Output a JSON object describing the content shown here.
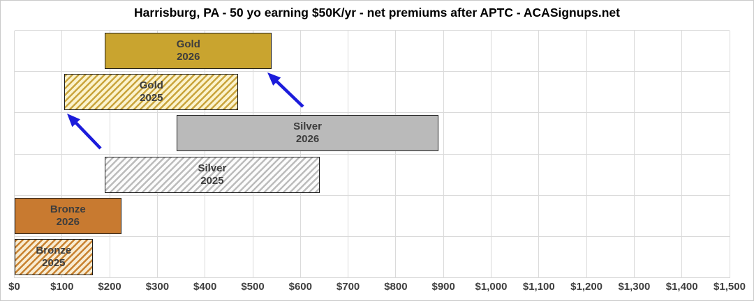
{
  "chart_data": {
    "type": "bar",
    "subtype": "horizontal-range",
    "title": "Harrisburg, PA - 50 yo earning $50K/yr - net premiums after APTC - ACASignups.net",
    "xlabel": "",
    "ylabel": "",
    "grid": true,
    "legend": "none",
    "x_axis": {
      "min": 0,
      "max": 1500,
      "tick_step": 100,
      "tick_labels": [
        "$0",
        "$100",
        "$200",
        "$300",
        "$400",
        "$500",
        "$600",
        "$700",
        "$800",
        "$900",
        "$1,000",
        "$1,100",
        "$1,200",
        "$1,300",
        "$1,400",
        "$1,500"
      ]
    },
    "categories": [
      "Gold 2026",
      "Gold 2025",
      "Silver 2026",
      "Silver 2025",
      "Bronze 2026",
      "Bronze 2025"
    ],
    "rows": [
      {
        "name": "Gold 2026",
        "line1": "Gold",
        "line2": "2026",
        "min": 190,
        "max": 540,
        "style": "solid",
        "fill": "#c9a42f",
        "stripe": "#c9a42f",
        "border": "#1c1c1c"
      },
      {
        "name": "Gold 2025",
        "line1": "Gold",
        "line2": "2025",
        "min": 105,
        "max": 470,
        "style": "hatched",
        "fill": "#fbf3cd",
        "stripe": "#c9a43c",
        "border": "#1c1c1c"
      },
      {
        "name": "Silver 2026",
        "line1": "Silver",
        "line2": "2026",
        "min": 340,
        "max": 890,
        "style": "solid",
        "fill": "#bababa",
        "stripe": "#bababa",
        "border": "#1c1c1c"
      },
      {
        "name": "Silver 2025",
        "line1": "Silver",
        "line2": "2025",
        "min": 190,
        "max": 640,
        "style": "hatched",
        "fill": "#fcfcfc",
        "stripe": "#bcbcbc",
        "border": "#1c1c1c"
      },
      {
        "name": "Bronze 2026",
        "line1": "Bronze",
        "line2": "2026",
        "min": 0,
        "max": 225,
        "style": "solid",
        "fill": "#c87a30",
        "stripe": "#c87a30",
        "border": "#1c1c1c"
      },
      {
        "name": "Bronze 2025",
        "line1": "Bronze",
        "line2": "2025",
        "min": 0,
        "max": 165,
        "style": "hatched",
        "fill": "#f8ecd2",
        "stripe": "#c8812f",
        "border": "#1c1c1c"
      }
    ],
    "annotations": {
      "arrow_color": "#1c1cdb",
      "arrows": [
        {
          "name": "arrow-to-gold-2026",
          "meaning": "points from Silver 2026 area to Gold 2026 bar",
          "tail": [
            433,
            152
          ],
          "tip": [
            382,
            103
          ]
        },
        {
          "name": "arrow-to-gold-2025",
          "meaning": "points from Silver 2025 area to Gold 2025 bar",
          "tail": [
            143,
            212
          ],
          "tip": [
            95,
            162
          ]
        }
      ]
    }
  }
}
